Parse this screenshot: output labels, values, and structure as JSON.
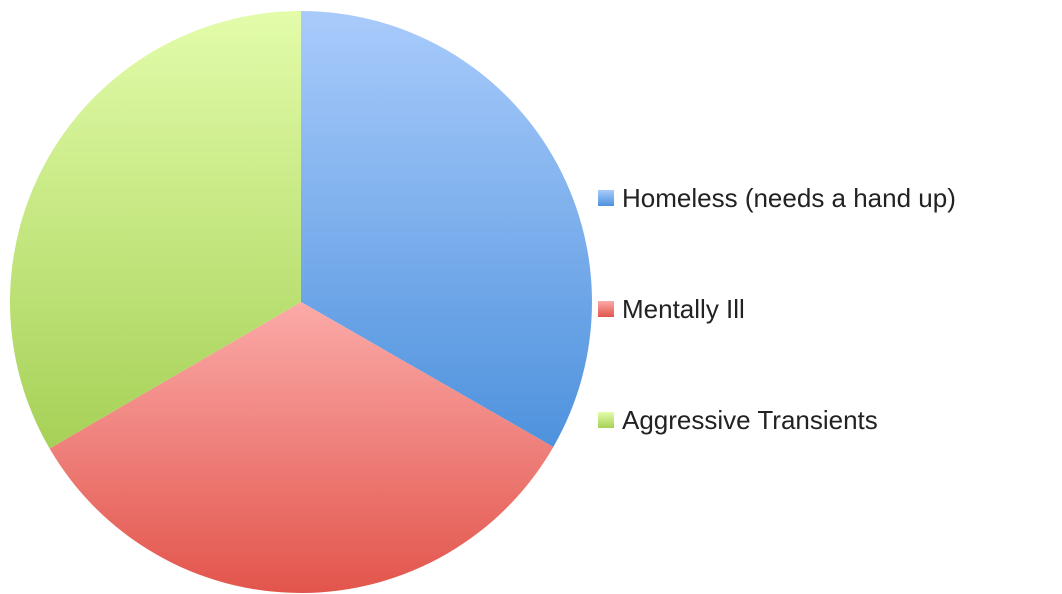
{
  "chart_data": {
    "type": "pie",
    "title": "",
    "categories": [
      "Homeless (needs a hand up)",
      "Mentally Ill",
      "Aggressive Transients"
    ],
    "values": [
      33.3,
      33.3,
      33.4
    ],
    "colors": [
      {
        "light": "#a9cbfb",
        "dark": "#4e92dd"
      },
      {
        "light": "#fbaaa8",
        "dark": "#e2554c"
      },
      {
        "light": "#e3fcaa",
        "dark": "#a6d157"
      }
    ],
    "start_angle_deg": 0,
    "direction": "clockwise",
    "legend": {
      "position": "right",
      "entries": [
        "Homeless (needs a hand up)",
        "Mentally Ill",
        "Aggressive Transients"
      ]
    }
  }
}
